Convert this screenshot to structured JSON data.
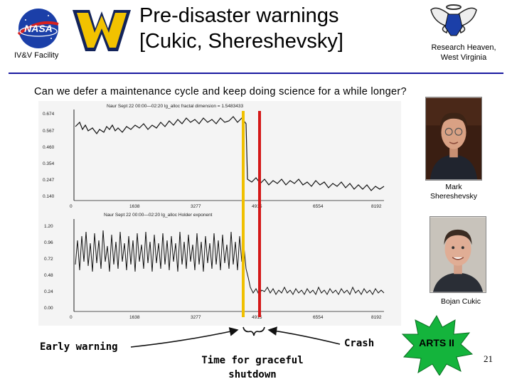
{
  "header": {
    "title_line1": "Pre-disaster warnings",
    "title_line2": "[Cukic, Shereshevsky]",
    "left_logo_text": "NASA",
    "left_caption": "IV&V Facility",
    "right_caption_line1": "Research Heaven,",
    "right_caption_line2": "West Virginia"
  },
  "question": "Can we defer a maintenance cycle and keep doing science for a while longer?",
  "plots": {
    "top": {
      "caption": "Naur Sept 22  00:00—02:20  lg_alloc fractal dimension = 1.5483433",
      "y_ticks": [
        "0.674",
        "0.567",
        "0.460",
        "0.354",
        "0.247",
        "0.140"
      ],
      "x_ticks": [
        "0",
        "1638",
        "3277",
        "4915",
        "6554",
        "8192"
      ]
    },
    "bottom": {
      "caption": "Naur Sept 22  00:00—02:20  lg_alloc Holder exponent",
      "y_ticks": [
        "1.20",
        "0.96",
        "0.72",
        "0.48",
        "0.24",
        "0.00"
      ],
      "x_ticks": [
        "0",
        "1638",
        "3277",
        "4915",
        "6554",
        "8192"
      ]
    }
  },
  "people": [
    {
      "name": "Mark Shereshevsky",
      "line1": "Mark",
      "line2": "Shereshevsky"
    },
    {
      "name": "Bojan Cukic",
      "line1": "Bojan Cukic"
    }
  ],
  "labels": {
    "early_warning": "Early warning",
    "crash": "Crash",
    "graceful_line1": "Time for graceful",
    "graceful_line2": "shutdown",
    "arts": "ARTS II",
    "page_number": "21"
  },
  "colors": {
    "accent_blue": "#1a1aa0",
    "wv_gold": "#f2c200",
    "warning_line": "#f0c000",
    "crash_line": "#d41818",
    "arts_badge": "#14b43c"
  }
}
